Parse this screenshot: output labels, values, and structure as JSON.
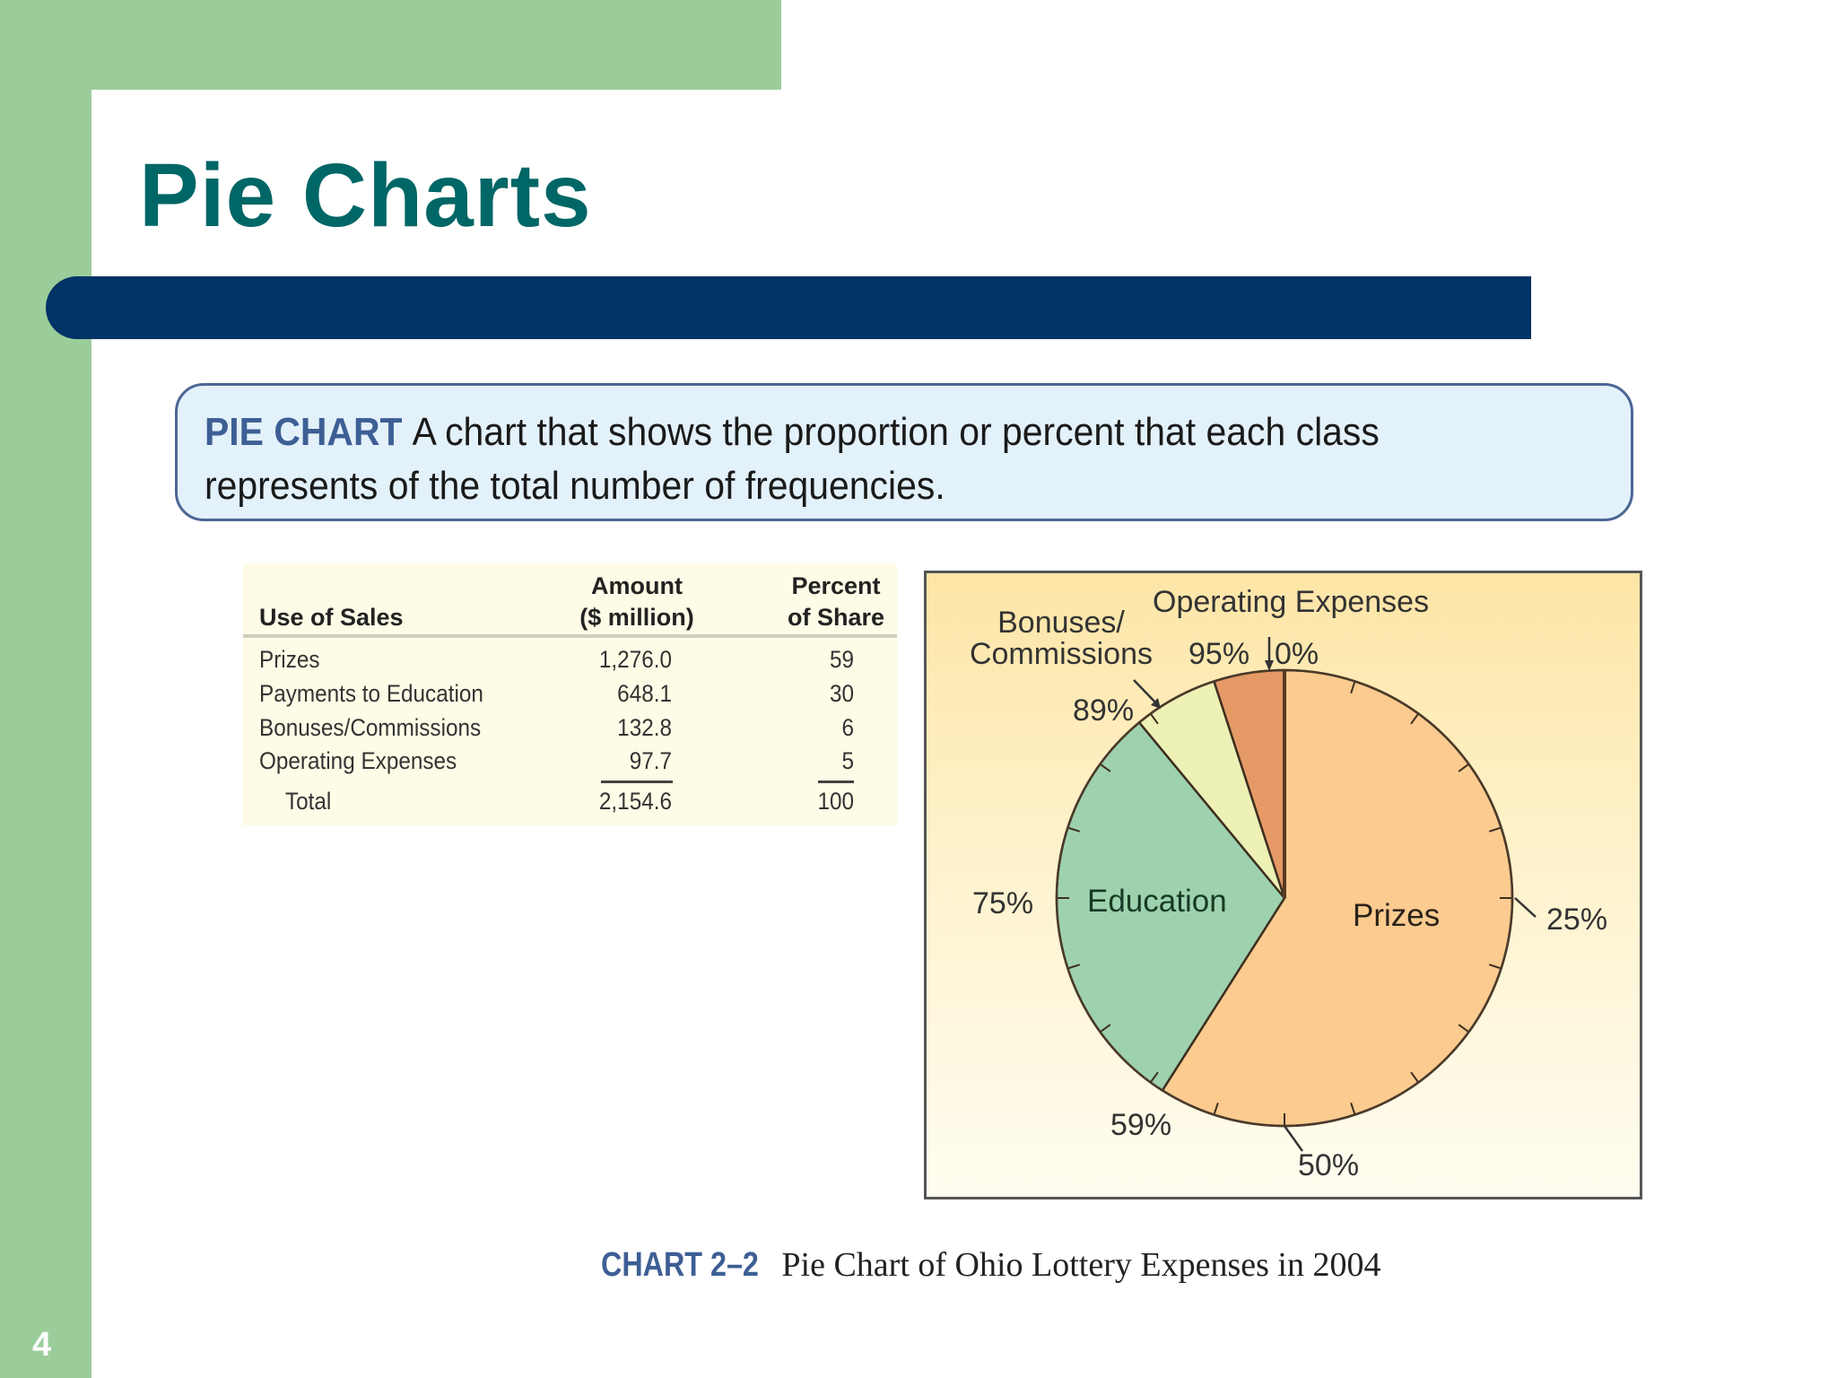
{
  "slide": {
    "title": "Pie Charts",
    "page_number": "4",
    "definition": {
      "term": "PIE CHART",
      "text": "A chart that shows the proportion or percent that each class represents of the total number of frequencies."
    },
    "colors": {
      "sidebar_green": "#9bcd9b",
      "title_teal": "#006666",
      "bar_navy": "#003366",
      "definition_fill": "#e3f1fb",
      "definition_border": "#4c6694"
    }
  },
  "table": {
    "headers": {
      "col1": "Use of Sales",
      "col2_line1": "Amount",
      "col2_line2": "($ million)",
      "col3_line1": "Percent",
      "col3_line2": "of Share"
    },
    "rows": [
      {
        "use": "Prizes",
        "amount": "1,276.0",
        "percent": "59"
      },
      {
        "use": "Payments to Education",
        "amount": "648.1",
        "percent": "30"
      },
      {
        "use": "Bonuses/Commissions",
        "amount": "132.8",
        "percent": "6"
      },
      {
        "use": "Operating Expenses",
        "amount": "97.7",
        "percent": "5"
      }
    ],
    "total": {
      "label": "Total",
      "amount": "2,154.6",
      "percent": "100"
    }
  },
  "caption": {
    "label": "CHART 2–2",
    "text": "Pie Chart of Ohio Lottery Expenses in 2004"
  },
  "chart_data": {
    "type": "pie",
    "title": "Pie Chart of Ohio Lottery Expenses in 2004",
    "categories": [
      "Prizes",
      "Education",
      "Bonuses/Commissions",
      "Operating Expenses"
    ],
    "values": [
      59,
      30,
      6,
      5
    ],
    "amounts_million": [
      1276.0,
      648.1,
      132.8,
      97.7
    ],
    "total_amount_million": 2154.6,
    "colors": [
      "#fbcb8f",
      "#9ed2ae",
      "#edf1b6",
      "#e59a66"
    ],
    "start_angle": "12 o'clock, clockwise",
    "cumulative_boundaries_percent": [
      0,
      59,
      89,
      95,
      100
    ],
    "tick_interval_percent": 5,
    "annotations": [
      "0%",
      "25%",
      "50%",
      "59%",
      "75%",
      "89%",
      "95%"
    ],
    "slice_labels": {
      "Prizes": "Prizes",
      "Education": "Education",
      "Bonuses": "Bonuses/ Commissions",
      "Operating": "Operating Expenses"
    },
    "label_text": {
      "bonuses_line1": "Bonuses/",
      "bonuses_line2": "Commissions",
      "operating": "Operating Expenses",
      "education": "Education",
      "prizes": "Prizes",
      "p0": "0%",
      "p25": "25%",
      "p50": "50%",
      "p59": "59%",
      "p75": "75%",
      "p89": "89%",
      "p95": "95%"
    }
  }
}
